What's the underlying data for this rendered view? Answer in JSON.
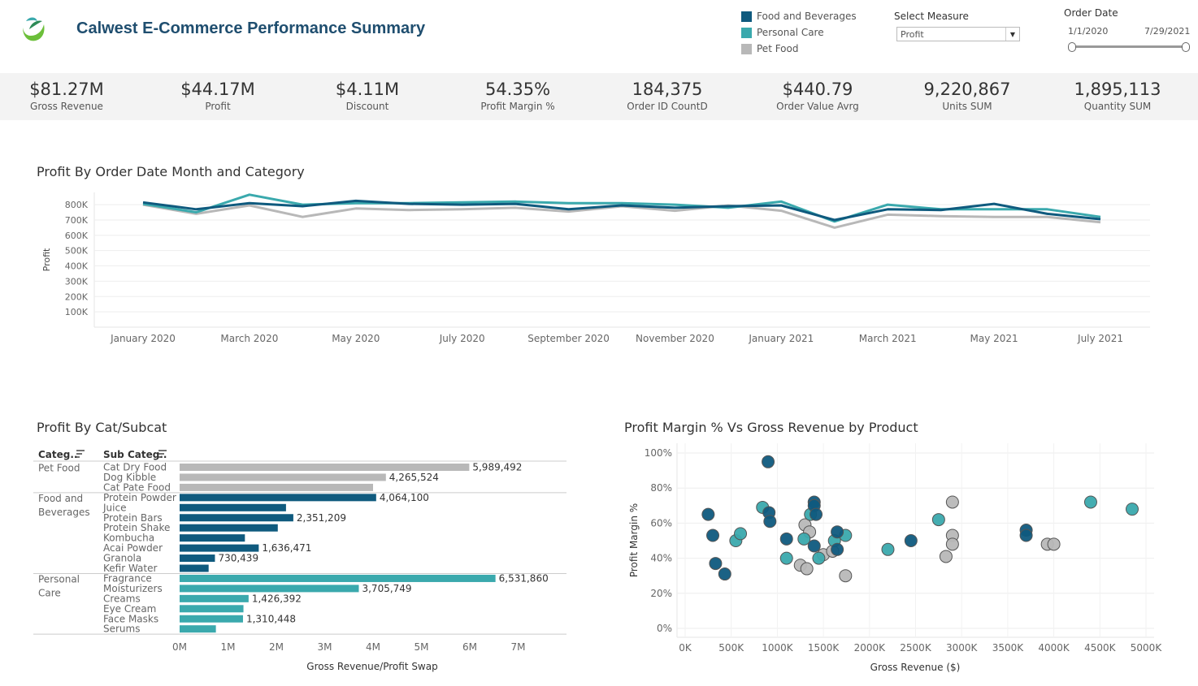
{
  "header": {
    "title": "Calwest E-Commerce Performance Summary",
    "logo_icon": "leaf-logo-icon"
  },
  "colors": {
    "food_and_beverages": "#0f5a7e",
    "personal_care": "#3aa9ad",
    "pet_food": "#b8b8b8",
    "title": "#1f4e6f"
  },
  "legend": {
    "items": [
      {
        "label": "Food and Beverages",
        "color": "#0f5a7e"
      },
      {
        "label": "Personal Care",
        "color": "#3aa9ad"
      },
      {
        "label": "Pet Food",
        "color": "#b8b8b8"
      }
    ]
  },
  "filters": {
    "measure_label": "Select Measure",
    "measure_value": "Profit",
    "date_label": "Order Date",
    "date_start": "1/1/2020",
    "date_end": "7/29/2021"
  },
  "kpis": [
    {
      "value": "$81.27M",
      "label": "Gross Revenue"
    },
    {
      "value": "$44.17M",
      "label": "Profit"
    },
    {
      "value": "$4.11M",
      "label": "Discount"
    },
    {
      "value": "54.35%",
      "label": "Profit Margin %"
    },
    {
      "value": "184,375",
      "label": "Order ID CountD"
    },
    {
      "value": "$440.79",
      "label": "Order Value Avrg"
    },
    {
      "value": "9,220,867",
      "label": "Units SUM"
    },
    {
      "value": "1,895,113",
      "label": "Quantity SUM"
    }
  ],
  "chart_data": [
    {
      "type": "line",
      "title": "Profit By Order Date Month and Category",
      "xlabel": "",
      "ylabel": "Profit",
      "x": [
        "2020-01",
        "2020-02",
        "2020-03",
        "2020-04",
        "2020-05",
        "2020-06",
        "2020-07",
        "2020-08",
        "2020-09",
        "2020-10",
        "2020-11",
        "2020-12",
        "2021-01",
        "2021-02",
        "2021-03",
        "2021-04",
        "2021-05",
        "2021-06",
        "2021-07"
      ],
      "x_tick_labels": [
        "January 2020",
        "March 2020",
        "May 2020",
        "July 2020",
        "September 2020",
        "November 2020",
        "January 2021",
        "March 2021",
        "May 2021",
        "July 2021"
      ],
      "y_tick_labels": [
        "100K",
        "200K",
        "300K",
        "400K",
        "500K",
        "600K",
        "700K",
        "800K"
      ],
      "ylim": [
        0,
        880000
      ],
      "grid": true,
      "series": [
        {
          "name": "Food and Beverages",
          "values": [
            815000,
            770000,
            810000,
            790000,
            825000,
            805000,
            800000,
            805000,
            770000,
            795000,
            780000,
            790000,
            795000,
            700000,
            770000,
            765000,
            805000,
            740000,
            705000
          ]
        },
        {
          "name": "Personal Care",
          "values": [
            805000,
            750000,
            865000,
            800000,
            810000,
            810000,
            815000,
            820000,
            810000,
            810000,
            800000,
            780000,
            820000,
            690000,
            800000,
            770000,
            770000,
            770000,
            720000
          ]
        },
        {
          "name": "Pet Food",
          "values": [
            800000,
            740000,
            795000,
            720000,
            775000,
            765000,
            770000,
            780000,
            755000,
            790000,
            760000,
            795000,
            760000,
            650000,
            735000,
            725000,
            720000,
            720000,
            685000
          ]
        }
      ]
    },
    {
      "type": "bar",
      "orientation": "horizontal",
      "title": "Profit By Cat/Subcat",
      "xlabel": "Gross Revenue/Profit Swap",
      "column_headers": [
        "Categ..",
        "Sub Categ.."
      ],
      "x_tick_labels": [
        "0M",
        "1M",
        "2M",
        "3M",
        "4M",
        "5M",
        "6M",
        "7M"
      ],
      "xlim": [
        0,
        8000000
      ],
      "groups": [
        {
          "category_lines": [
            "Pet Food"
          ],
          "color": "#b8b8b8",
          "items": [
            {
              "subcategory": "Cat Dry Food",
              "value": 5989492,
              "label": "5,989,492"
            },
            {
              "subcategory": "Dog Kibble",
              "value": 4265524,
              "label": "4,265,524"
            },
            {
              "subcategory": "Cat Pate Food",
              "value": 4000000,
              "label": ""
            }
          ]
        },
        {
          "category_lines": [
            "Food and",
            "Beverages"
          ],
          "color": "#0f5a7e",
          "items": [
            {
              "subcategory": "Protein Powder",
              "value": 4064100,
              "label": "4,064,100"
            },
            {
              "subcategory": "Juice",
              "value": 2200000,
              "label": ""
            },
            {
              "subcategory": "Protein Bars",
              "value": 2351209,
              "label": "2,351,209"
            },
            {
              "subcategory": "Protein Shake",
              "value": 2030000,
              "label": ""
            },
            {
              "subcategory": "Kombucha",
              "value": 1350000,
              "label": ""
            },
            {
              "subcategory": "Acai Powder",
              "value": 1636471,
              "label": "1,636,471"
            },
            {
              "subcategory": "Granola",
              "value": 730439,
              "label": "730,439"
            },
            {
              "subcategory": "Kefir Water",
              "value": 600000,
              "label": ""
            }
          ]
        },
        {
          "category_lines": [
            "Personal",
            "Care"
          ],
          "color": "#3aa9ad",
          "items": [
            {
              "subcategory": "Fragrance",
              "value": 6531860,
              "label": "6,531,860"
            },
            {
              "subcategory": "Moisturizers",
              "value": 3705749,
              "label": "3,705,749"
            },
            {
              "subcategory": "Creams",
              "value": 1426392,
              "label": "1,426,392"
            },
            {
              "subcategory": "Eye Cream",
              "value": 1320000,
              "label": ""
            },
            {
              "subcategory": "Face Masks",
              "value": 1310448,
              "label": "1,310,448"
            },
            {
              "subcategory": "Serums",
              "value": 750000,
              "label": ""
            }
          ]
        }
      ]
    },
    {
      "type": "scatter",
      "title": "Profit Margin % Vs Gross Revenue by Product",
      "xlabel": "Gross Revenue ($)",
      "ylabel": "Profit Margin %",
      "x_tick_labels": [
        "0K",
        "500K",
        "1000K",
        "1500K",
        "2000K",
        "2500K",
        "3000K",
        "3500K",
        "4000K",
        "4500K",
        "5000K"
      ],
      "y_tick_labels": [
        "0%",
        "20%",
        "40%",
        "60%",
        "80%",
        "100%"
      ],
      "xlim": [
        0,
        5000000
      ],
      "ylim": [
        0,
        100
      ],
      "grid": true,
      "series": [
        {
          "name": "Food and Beverages",
          "points": [
            [
              250000,
              65
            ],
            [
              300000,
              53
            ],
            [
              330000,
              37
            ],
            [
              430000,
              31
            ],
            [
              900000,
              95
            ],
            [
              910000,
              66
            ],
            [
              920000,
              61
            ],
            [
              1100000,
              51
            ],
            [
              1400000,
              72
            ],
            [
              1400000,
              70
            ],
            [
              1420000,
              65
            ],
            [
              1400000,
              47
            ],
            [
              1650000,
              45
            ],
            [
              1650000,
              55
            ],
            [
              2450000,
              50
            ],
            [
              3700000,
              56
            ],
            [
              3700000,
              53
            ]
          ]
        },
        {
          "name": "Personal Care",
          "points": [
            [
              550000,
              50
            ],
            [
              600000,
              54
            ],
            [
              840000,
              69
            ],
            [
              1100000,
              40
            ],
            [
              1290000,
              51
            ],
            [
              1360000,
              65
            ],
            [
              1450000,
              40
            ],
            [
              1620000,
              50
            ],
            [
              1740000,
              53
            ],
            [
              2200000,
              45
            ],
            [
              2750000,
              62
            ],
            [
              4400000,
              72
            ],
            [
              4850000,
              68
            ]
          ]
        },
        {
          "name": "Pet Food",
          "points": [
            [
              1250000,
              36
            ],
            [
              1300000,
              59
            ],
            [
              1320000,
              34
            ],
            [
              1350000,
              55
            ],
            [
              1500000,
              42
            ],
            [
              1600000,
              44
            ],
            [
              1740000,
              30
            ],
            [
              2830000,
              41
            ],
            [
              2900000,
              72
            ],
            [
              2900000,
              53
            ],
            [
              2900000,
              48
            ],
            [
              3930000,
              48
            ],
            [
              4000000,
              48
            ]
          ]
        }
      ]
    }
  ]
}
